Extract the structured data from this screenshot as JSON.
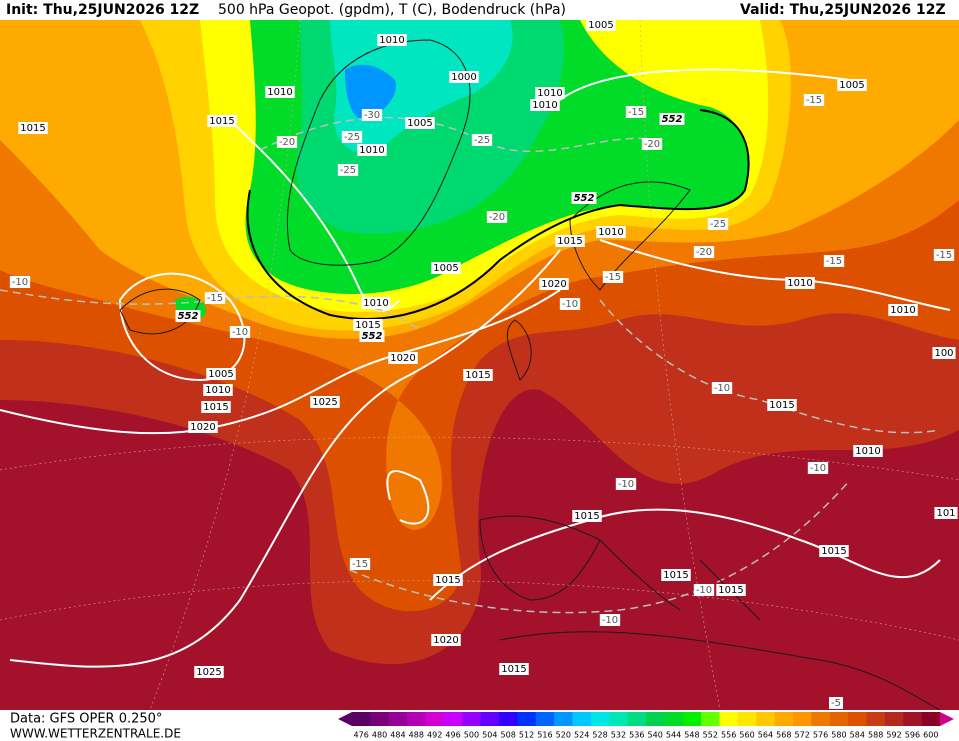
{
  "header": {
    "init": "Init: Thu,25JUN2026 12Z",
    "title": "500 hPa Geopot. (gpdm), T (C), Bodendruck (hPa)",
    "valid": "Valid: Thu,25JUN2026 12Z"
  },
  "footer": {
    "data": "Data: GFS OPER 0.250°",
    "site": "WWW.WETTERZENTRALE.DE"
  },
  "colorbar": {
    "labels": [
      476,
      480,
      484,
      488,
      492,
      496,
      500,
      504,
      508,
      512,
      516,
      520,
      524,
      528,
      532,
      536,
      540,
      544,
      548,
      552,
      556,
      560,
      564,
      568,
      572,
      576,
      580,
      584,
      588,
      592,
      596,
      600
    ],
    "colors": [
      "#5a0064",
      "#780078",
      "#960096",
      "#b400b4",
      "#d200d2",
      "#c800ff",
      "#9600ff",
      "#6400ff",
      "#3200ff",
      "#0032ff",
      "#0064ff",
      "#0096ff",
      "#00c8ff",
      "#00e6e6",
      "#00e6b4",
      "#00dc82",
      "#00d250",
      "#00dc28",
      "#00f000",
      "#64ff00",
      "#ffff00",
      "#ffe600",
      "#ffc800",
      "#ffaa00",
      "#ff9600",
      "#f07800",
      "#e66400",
      "#dc5000",
      "#c83c14",
      "#b4281e",
      "#a01428",
      "#8c0028"
    ]
  },
  "map": {
    "isobar_labels": [
      "1005",
      "1010",
      "1000",
      "1010",
      "1015",
      "1015",
      "1005",
      "1010",
      "1010",
      "1010",
      "1005",
      "1015",
      "1010",
      "1005",
      "1020",
      "1010",
      "1010",
      "1010",
      "1015",
      "1020",
      "1015",
      "1005",
      "1010",
      "1015",
      "1020",
      "1025",
      "1015",
      "1010",
      "1015",
      "1015",
      "1015",
      "1015",
      "1015",
      "1020",
      "1025",
      "1015",
      "100",
      "101"
    ],
    "temperature_labels": [
      "-30",
      "-25",
      "-25",
      "-20",
      "-25",
      "-20",
      "-15",
      "-15",
      "-20",
      "-25",
      "-20",
      "-15",
      "-15",
      "-15",
      "-10",
      "-10",
      "-15",
      "-10",
      "-10",
      "-10",
      "-10",
      "-15",
      "-10",
      "-10",
      "-5"
    ],
    "height_labels": [
      "552",
      "552",
      "552",
      "552"
    ]
  }
}
